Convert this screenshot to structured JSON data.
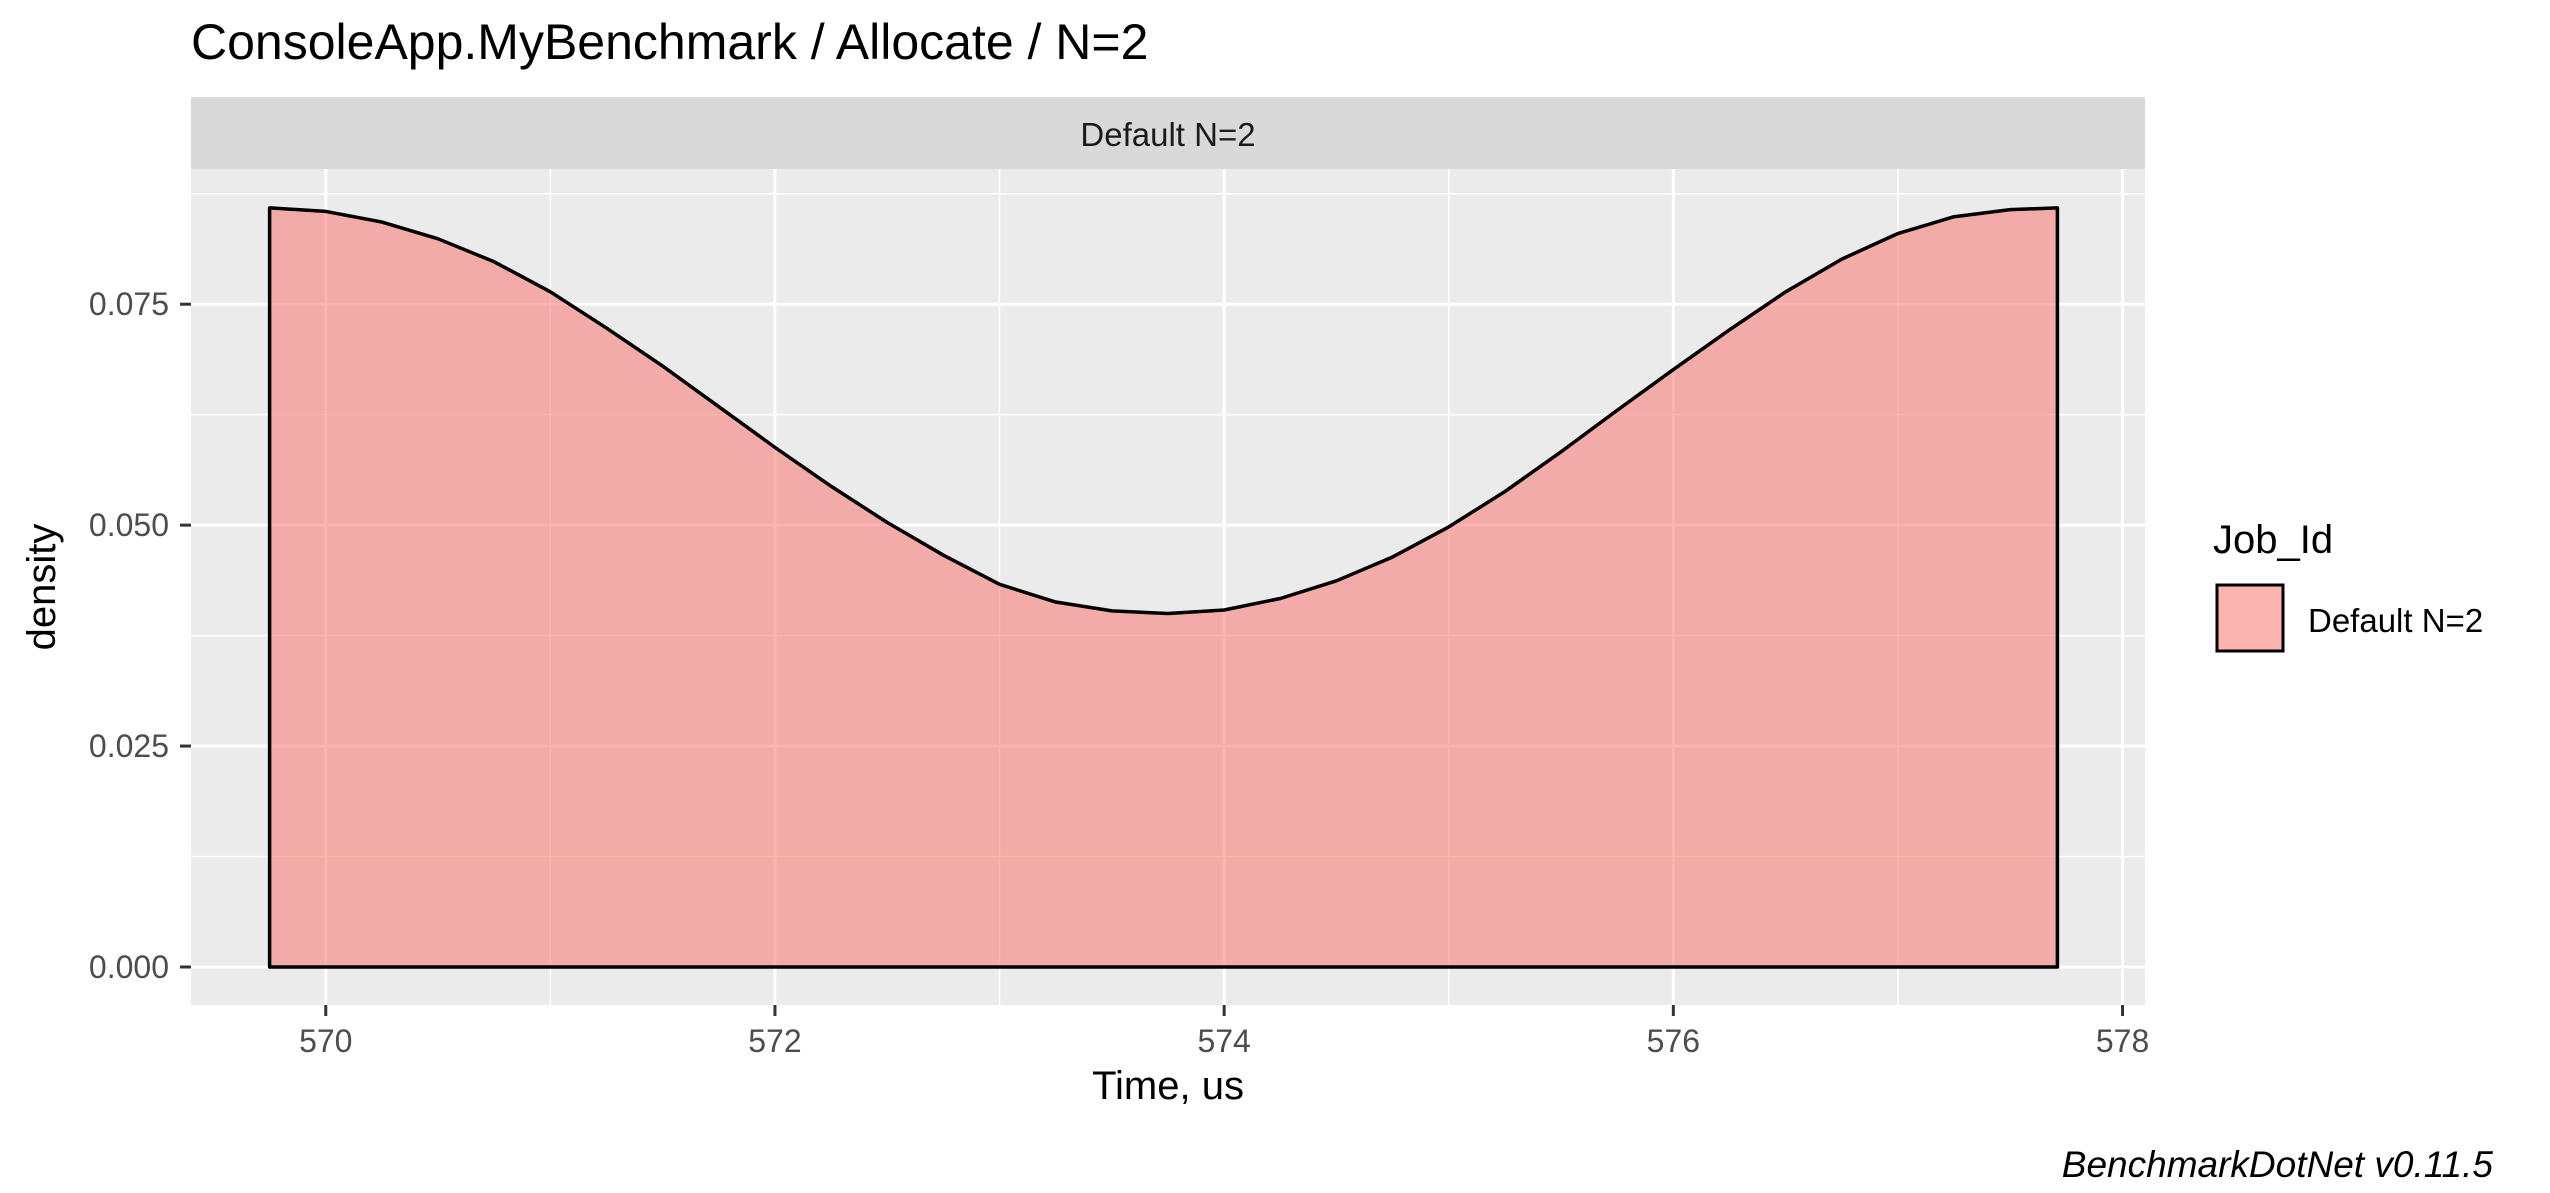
{
  "colors": {
    "panel_bg": "#EBEBEB",
    "strip_bg": "#D9D9D9",
    "grid_major": "#FFFFFF",
    "fill": "#F8766D",
    "fill_opacity": 0.55,
    "outline": "#000000",
    "tick_text": "#4D4D4D",
    "text": "#000000"
  },
  "chart_data": {
    "type": "area",
    "title": "ConsoleApp.MyBenchmark / Allocate / N=2",
    "facet_label": "Default N=2",
    "xlabel": "Time, us",
    "ylabel": "density",
    "caption": "BenchmarkDotNet v0.11.5",
    "xlim": [
      569.4,
      578.1
    ],
    "ylim": [
      -0.0043,
      0.0903
    ],
    "x_ticks": [
      570,
      572,
      574,
      576,
      578
    ],
    "y_ticks": [
      0.0,
      0.025,
      0.05,
      0.075
    ],
    "y_tick_labels": [
      "0.000",
      "0.025",
      "0.050",
      "0.075"
    ],
    "grid": true,
    "legend": {
      "title": "Job_Id",
      "position": "right",
      "items": [
        "Default N=2"
      ]
    },
    "series": [
      {
        "name": "Default N=2",
        "x": [
          569.75,
          570.0,
          570.25,
          570.5,
          570.75,
          571.0,
          571.25,
          571.5,
          571.75,
          572.0,
          572.25,
          572.5,
          572.75,
          573.0,
          573.25,
          573.5,
          573.75,
          574.0,
          574.25,
          574.5,
          574.75,
          575.0,
          575.25,
          575.5,
          575.75,
          576.0,
          576.25,
          576.5,
          576.75,
          577.0,
          577.25,
          577.5,
          577.71
        ],
        "y": [
          0.0859,
          0.0855,
          0.0843,
          0.0824,
          0.0798,
          0.0764,
          0.0723,
          0.068,
          0.0634,
          0.0588,
          0.0544,
          0.0503,
          0.0466,
          0.0433,
          0.0413,
          0.0403,
          0.04,
          0.0404,
          0.0417,
          0.0437,
          0.0464,
          0.0498,
          0.0538,
          0.0583,
          0.063,
          0.0676,
          0.0721,
          0.0764,
          0.0801,
          0.083,
          0.0849,
          0.0857,
          0.0859
        ]
      }
    ]
  }
}
